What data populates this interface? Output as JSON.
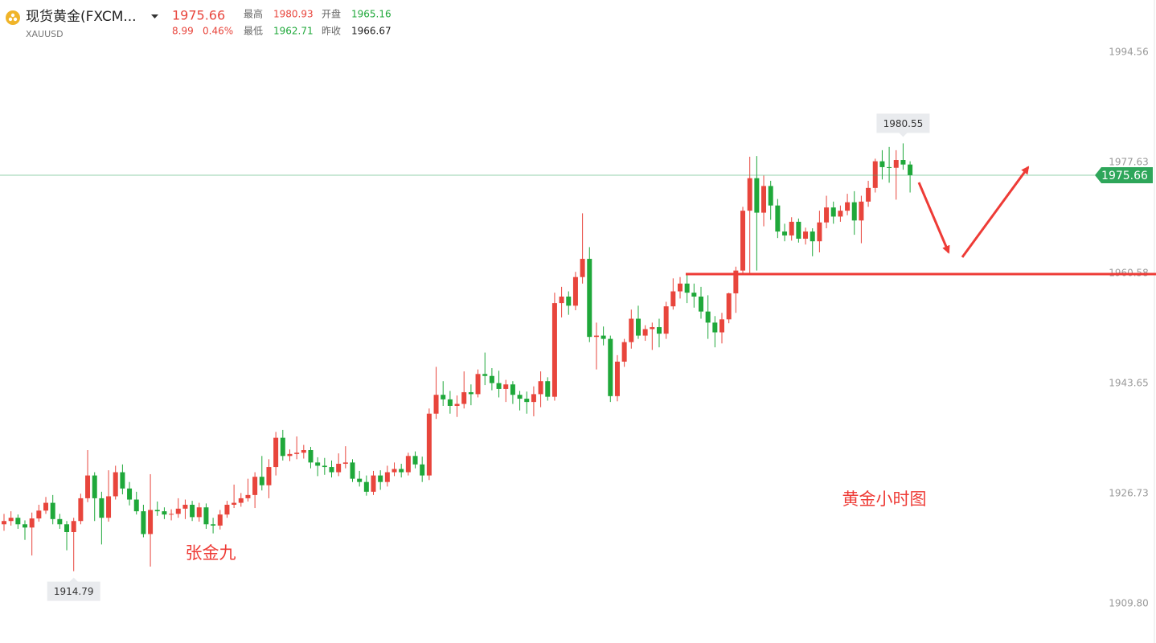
{
  "header": {
    "name": "现货黄金(FXCM...",
    "symbol": "XAUUSD",
    "price": "1975.66",
    "change": "8.99",
    "change_pct": "0.46%",
    "high_label": "最高",
    "high": "1980.93",
    "open_label": "开盘",
    "open": "1965.16",
    "low_label": "最低",
    "low": "1962.71",
    "prev_close_label": "昨收",
    "prev_close": "1966.67"
  },
  "chart_data": {
    "type": "candlestick",
    "up_color": "#e8453c",
    "down_color": "#1fa83a",
    "last_price_color": "#2ea65a",
    "ylim": [
      1903.75,
      2002.59
    ],
    "yticks": [
      1994.56,
      1977.63,
      1960.58,
      1943.65,
      1926.73,
      {
        "value": 1909.8,
        "label": "1909.80"
      }
    ],
    "grid": false,
    "annotations": [
      "黄金小时图",
      "张金九"
    ],
    "ohlc": [
      [
        1922.0,
        1923.6,
        1921.0,
        1922.5
      ],
      [
        1922.5,
        1924.0,
        1921.8,
        1923.0
      ],
      [
        1923.0,
        1923.5,
        1921.3,
        1922.0
      ],
      [
        1922.0,
        1922.6,
        1919.6,
        1921.5
      ],
      [
        1921.5,
        1923.8,
        1917.2,
        1922.9
      ],
      [
        1922.9,
        1925.0,
        1922.4,
        1924.1
      ],
      [
        1924.1,
        1926.2,
        1923.6,
        1925.3
      ],
      [
        1925.3,
        1926.5,
        1922.0,
        1922.8
      ],
      [
        1922.8,
        1923.6,
        1921.3,
        1922.0
      ],
      [
        1922.0,
        1922.5,
        1918.0,
        1920.8
      ],
      [
        1920.8,
        1923.0,
        1914.79,
        1922.5
      ],
      [
        1922.5,
        1926.7,
        1922.0,
        1926.0
      ],
      [
        1926.0,
        1933.4,
        1925.4,
        1929.5
      ],
      [
        1929.5,
        1930.0,
        1922.5,
        1926.0
      ],
      [
        1926.0,
        1927.0,
        1918.9,
        1923.0
      ],
      [
        1923.0,
        1930.3,
        1922.4,
        1926.3
      ],
      [
        1926.3,
        1931.0,
        1925.8,
        1930.0
      ],
      [
        1930.0,
        1931.2,
        1926.6,
        1927.5
      ],
      [
        1927.5,
        1928.5,
        1924.9,
        1925.8
      ],
      [
        1925.8,
        1927.0,
        1923.5,
        1924.0
      ],
      [
        1924.0,
        1925.0,
        1920.0,
        1920.5
      ],
      [
        1920.5,
        1929.7,
        1915.5,
        1924.2
      ],
      [
        1924.2,
        1925.5,
        1923.3,
        1924.0
      ],
      [
        1924.0,
        1924.6,
        1922.8,
        1923.5
      ],
      [
        1923.5,
        1924.3,
        1922.6,
        1923.6
      ],
      [
        1923.6,
        1926.0,
        1923.0,
        1924.4
      ],
      [
        1924.4,
        1925.8,
        1922.8,
        1925.0
      ],
      [
        1925.0,
        1925.6,
        1922.5,
        1923.1
      ],
      [
        1923.1,
        1925.3,
        1922.4,
        1924.6
      ],
      [
        1924.6,
        1925.2,
        1921.3,
        1922.0
      ],
      [
        1922.0,
        1923.0,
        1920.6,
        1921.8
      ],
      [
        1921.8,
        1924.2,
        1921.2,
        1923.5
      ],
      [
        1923.5,
        1925.6,
        1923.0,
        1925.0
      ],
      [
        1925.0,
        1928.1,
        1924.5,
        1925.3
      ],
      [
        1925.3,
        1926.8,
        1924.7,
        1926.0
      ],
      [
        1926.0,
        1929.0,
        1925.5,
        1926.5
      ],
      [
        1926.5,
        1930.0,
        1924.5,
        1929.3
      ],
      [
        1929.3,
        1932.5,
        1927.2,
        1928.0
      ],
      [
        1928.0,
        1932.0,
        1926.0,
        1930.8
      ],
      [
        1930.8,
        1936.2,
        1929.5,
        1935.3
      ],
      [
        1935.3,
        1936.5,
        1931.8,
        1932.5
      ],
      [
        1932.5,
        1933.5,
        1931.7,
        1932.8
      ],
      [
        1932.8,
        1935.5,
        1932.0,
        1933.0
      ],
      [
        1933.0,
        1934.2,
        1932.1,
        1933.4
      ],
      [
        1933.4,
        1933.9,
        1930.6,
        1931.5
      ],
      [
        1931.5,
        1932.3,
        1929.4,
        1931.0
      ],
      [
        1931.0,
        1932.2,
        1929.6,
        1930.8
      ],
      [
        1930.8,
        1931.8,
        1929.2,
        1930.0
      ],
      [
        1930.0,
        1932.9,
        1929.4,
        1931.3
      ],
      [
        1931.3,
        1934.0,
        1930.6,
        1931.5
      ],
      [
        1931.5,
        1932.0,
        1928.5,
        1929.0
      ],
      [
        1929.0,
        1930.2,
        1927.8,
        1928.5
      ],
      [
        1928.5,
        1929.5,
        1926.4,
        1927.0
      ],
      [
        1927.0,
        1930.2,
        1926.5,
        1929.5
      ],
      [
        1929.5,
        1930.3,
        1927.3,
        1928.5
      ],
      [
        1928.5,
        1931.0,
        1927.8,
        1930.0
      ],
      [
        1930.0,
        1931.5,
        1929.4,
        1930.5
      ],
      [
        1930.5,
        1931.3,
        1929.2,
        1930.0
      ],
      [
        1930.0,
        1933.0,
        1929.5,
        1932.5
      ],
      [
        1932.5,
        1933.2,
        1930.6,
        1931.2
      ],
      [
        1931.2,
        1932.4,
        1928.5,
        1929.5
      ],
      [
        1929.5,
        1939.8,
        1928.8,
        1939.0
      ],
      [
        1939.0,
        1946.2,
        1938.2,
        1941.9
      ],
      [
        1941.9,
        1944.0,
        1940.2,
        1941.2
      ],
      [
        1941.2,
        1942.5,
        1939.0,
        1940.2
      ],
      [
        1940.2,
        1941.8,
        1938.5,
        1940.5
      ],
      [
        1940.5,
        1945.5,
        1939.8,
        1942.3
      ],
      [
        1942.3,
        1943.5,
        1940.3,
        1942.0
      ],
      [
        1942.0,
        1945.8,
        1941.5,
        1945.1
      ],
      [
        1945.1,
        1948.4,
        1943.4,
        1944.8
      ],
      [
        1944.8,
        1946.0,
        1942.6,
        1943.7
      ],
      [
        1943.7,
        1945.6,
        1941.5,
        1942.8
      ],
      [
        1942.8,
        1944.2,
        1940.8,
        1943.5
      ],
      [
        1943.5,
        1944.0,
        1940.5,
        1941.9
      ],
      [
        1941.9,
        1942.5,
        1939.5,
        1941.3
      ],
      [
        1941.3,
        1942.4,
        1939.0,
        1940.8
      ],
      [
        1940.8,
        1943.2,
        1938.6,
        1942.0
      ],
      [
        1942.0,
        1945.5,
        1940.0,
        1944.0
      ],
      [
        1944.0,
        1944.6,
        1941.0,
        1941.6
      ],
      [
        1941.6,
        1957.6,
        1941.0,
        1956.0
      ],
      [
        1956.0,
        1958.5,
        1953.8,
        1957.0
      ],
      [
        1957.0,
        1957.8,
        1954.2,
        1955.6
      ],
      [
        1955.6,
        1960.8,
        1954.9,
        1960.0
      ],
      [
        1960.0,
        1969.8,
        1959.0,
        1962.8
      ],
      [
        1962.8,
        1964.6,
        1950.0,
        1950.8
      ],
      [
        1950.8,
        1953.0,
        1945.8,
        1951.0
      ],
      [
        1951.0,
        1952.4,
        1949.5,
        1950.5
      ],
      [
        1950.5,
        1951.0,
        1940.8,
        1941.7
      ],
      [
        1941.7,
        1948.0,
        1940.9,
        1947.0
      ],
      [
        1947.0,
        1950.5,
        1946.2,
        1950.0
      ],
      [
        1950.0,
        1955.0,
        1949.0,
        1953.6
      ],
      [
        1953.6,
        1955.6,
        1950.5,
        1951.0
      ],
      [
        1951.0,
        1952.6,
        1950.2,
        1952.0
      ],
      [
        1952.0,
        1953.0,
        1948.8,
        1952.3
      ],
      [
        1952.3,
        1953.6,
        1949.2,
        1951.3
      ],
      [
        1951.3,
        1956.2,
        1950.5,
        1955.5
      ],
      [
        1955.5,
        1959.8,
        1955.0,
        1957.8
      ],
      [
        1957.8,
        1960.0,
        1956.7,
        1959.0
      ],
      [
        1959.0,
        1960.3,
        1956.0,
        1957.6
      ],
      [
        1957.6,
        1959.0,
        1955.3,
        1957.0
      ],
      [
        1957.0,
        1958.5,
        1953.6,
        1954.7
      ],
      [
        1954.7,
        1957.2,
        1950.5,
        1953.0
      ],
      [
        1953.0,
        1954.0,
        1949.2,
        1951.5
      ],
      [
        1951.5,
        1954.5,
        1949.8,
        1953.5
      ],
      [
        1953.5,
        1957.6,
        1952.9,
        1957.5
      ],
      [
        1957.5,
        1961.6,
        1954.5,
        1961.0
      ],
      [
        1961.0,
        1970.8,
        1960.3,
        1970.2
      ],
      [
        1970.2,
        1978.5,
        1960.5,
        1975.2
      ],
      [
        1975.2,
        1978.6,
        1961.0,
        1969.9
      ],
      [
        1969.9,
        1975.6,
        1967.8,
        1974.0
      ],
      [
        1974.0,
        1974.8,
        1968.8,
        1971.0
      ],
      [
        1971.0,
        1972.0,
        1966.0,
        1967.0
      ],
      [
        1967.0,
        1968.2,
        1965.5,
        1966.4
      ],
      [
        1966.4,
        1969.2,
        1965.6,
        1968.5
      ],
      [
        1968.5,
        1969.0,
        1965.3,
        1965.9
      ],
      [
        1965.9,
        1967.6,
        1965.0,
        1967.0
      ],
      [
        1967.0,
        1967.5,
        1963.2,
        1965.5
      ],
      [
        1965.5,
        1970.2,
        1963.8,
        1968.4
      ],
      [
        1968.4,
        1972.5,
        1967.5,
        1970.7
      ],
      [
        1970.7,
        1971.6,
        1968.2,
        1969.3
      ],
      [
        1969.3,
        1971.0,
        1968.5,
        1970.2
      ],
      [
        1970.2,
        1972.8,
        1969.5,
        1971.5
      ],
      [
        1971.5,
        1973.2,
        1966.5,
        1968.7
      ],
      [
        1968.7,
        1972.5,
        1965.2,
        1971.6
      ],
      [
        1971.6,
        1974.8,
        1970.8,
        1973.7
      ],
      [
        1973.7,
        1978.2,
        1973.0,
        1977.8
      ],
      [
        1977.8,
        1979.5,
        1975.0,
        1976.9
      ],
      [
        1976.9,
        1980.0,
        1974.5,
        1976.8
      ],
      [
        1976.8,
        1979.5,
        1971.9,
        1978.0
      ],
      [
        1978.0,
        1980.55,
        1976.5,
        1977.3
      ],
      [
        1977.3,
        1977.8,
        1973.0,
        1975.66
      ]
    ]
  }
}
